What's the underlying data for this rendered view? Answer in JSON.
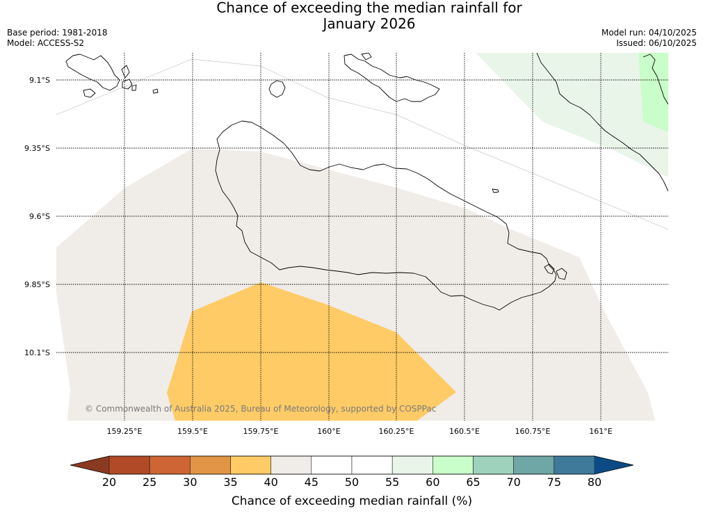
{
  "title": {
    "line1": "Chance of exceeding the median rainfall for",
    "line2": "January 2026"
  },
  "meta": {
    "base_period": "Base period: 1981-2018",
    "model": "Model: ACCESS-S2",
    "model_run": "Model run: 04/10/2025",
    "issued": "Issued: 06/10/2025"
  },
  "map": {
    "lat_ticks": [
      "9.1°S",
      "9.35°S",
      "9.6°S",
      "9.85°S",
      "10.1°S"
    ],
    "lon_ticks": [
      "159.25°E",
      "159.5°E",
      "159.75°E",
      "160°E",
      "160.25°E",
      "160.5°E",
      "160.75°E",
      "161°E"
    ],
    "copyright": "© Commonwealth of Australia 2025, Bureau of Meteorology, supported by COSPPac",
    "regions": [
      {
        "category": "40-45",
        "color": "#f0ece8"
      },
      {
        "category": "35-40",
        "color": "#fecb66"
      },
      {
        "category": "55-60",
        "color": "#eaf5ea"
      },
      {
        "category": "60-65",
        "color": "#c9fdc9"
      }
    ]
  },
  "colorbar": {
    "title": "Chance of exceeding median rainfall (%)",
    "ticks": [
      "20",
      "25",
      "30",
      "35",
      "40",
      "45",
      "50",
      "55",
      "60",
      "65",
      "70",
      "75",
      "80"
    ],
    "low_color": "#8b3a22",
    "high_color": "#0b4a85",
    "colors": [
      "#b04a27",
      "#cd6634",
      "#e29546",
      "#fecb66",
      "#f0ece8",
      "#ffffff",
      "#ffffff",
      "#eaf5ea",
      "#c9fdc9",
      "#9ed2bd",
      "#6fa6a6",
      "#3f7a9a"
    ]
  }
}
